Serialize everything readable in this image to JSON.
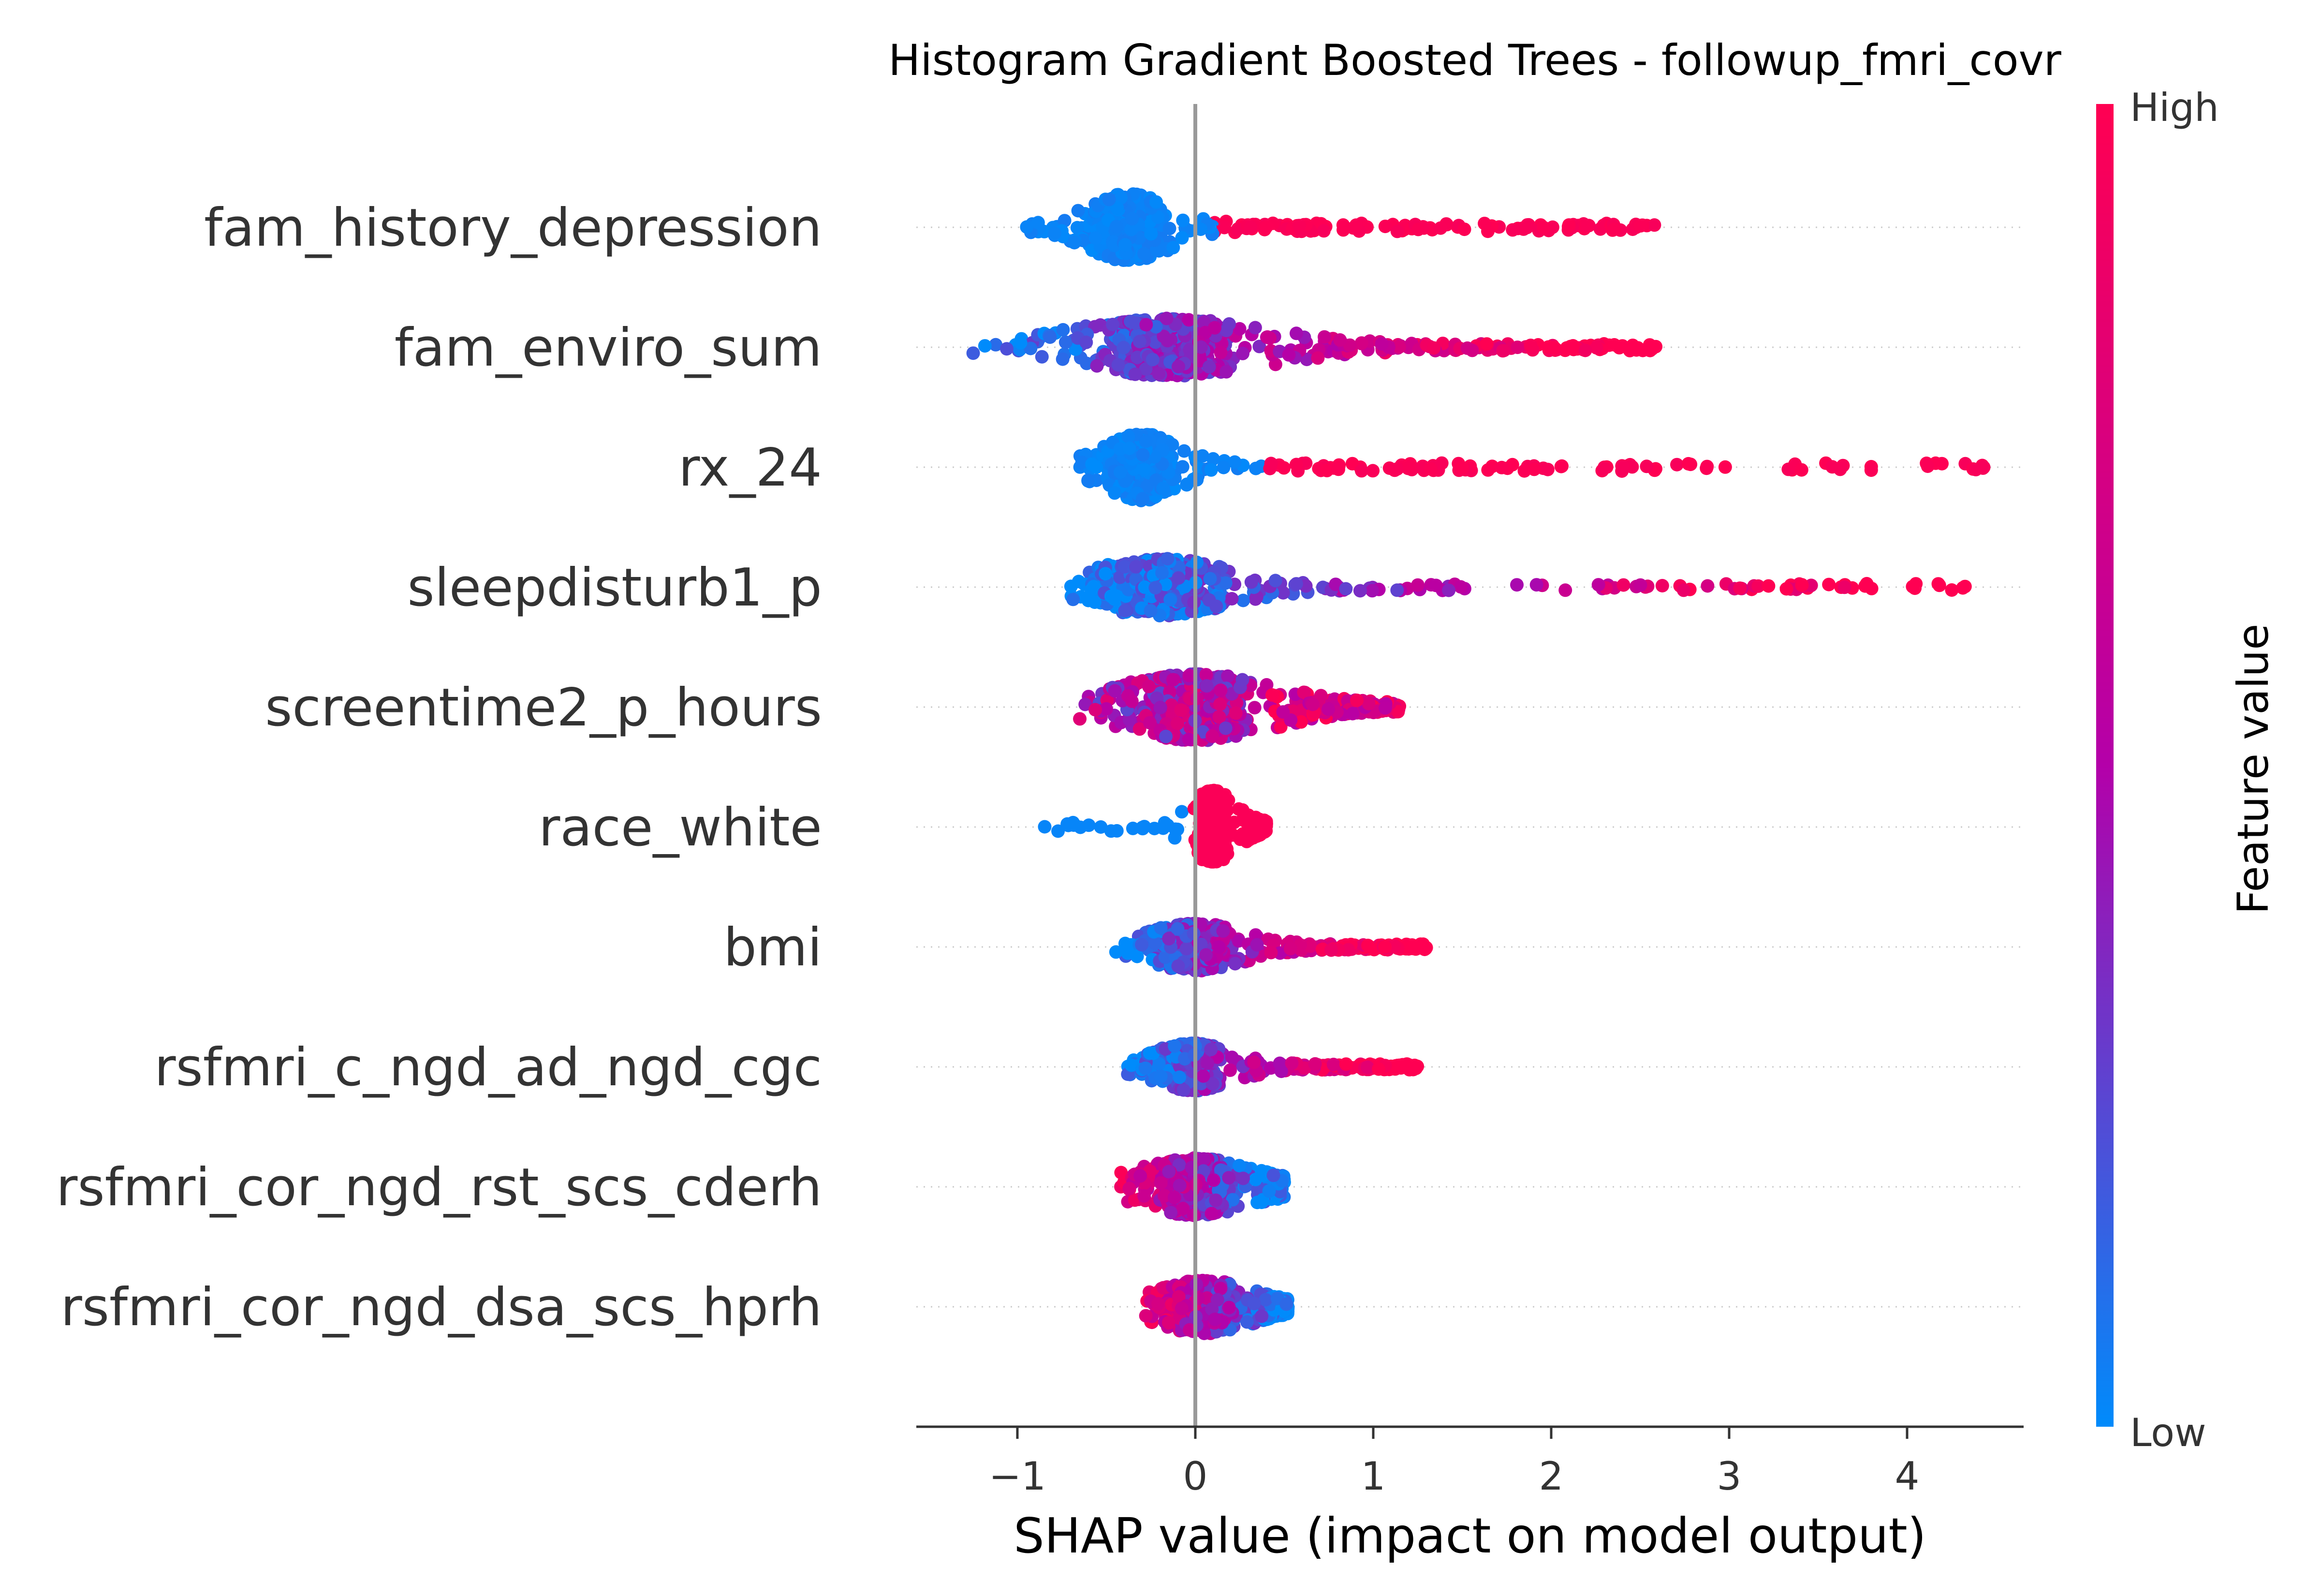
{
  "chart_data": {
    "type": "scatter",
    "title": "Histogram Gradient Boosted Trees - followup_fmri_covr",
    "xlabel": "SHAP value (impact on model output)",
    "xlim": [
      -1.55,
      4.7
    ],
    "xticks": [
      -1,
      0,
      1,
      2,
      3,
      4
    ],
    "xtick_labels": [
      "−1",
      "0",
      "1",
      "2",
      "3",
      "4"
    ],
    "grid": false,
    "colorbar": {
      "label": "Feature value",
      "high_label": "High",
      "low_label": "Low",
      "low_color": "#008bfb",
      "mid_color": "#b400a9",
      "high_color": "#ff0052"
    },
    "features": [
      {
        "name": "fam_history_depression",
        "min": -0.95,
        "max": 2.6,
        "core": [
          -0.55,
          -0.2
        ],
        "spread": 0.35,
        "color": "split",
        "split": 0.1,
        "tail": 1.1
      },
      {
        "name": "fam_enviro_sum",
        "min": -1.25,
        "max": 2.6,
        "core": [
          -0.6,
          0.3
        ],
        "spread": 0.3,
        "color": "gradient",
        "tail": 0.9
      },
      {
        "name": "rx_24",
        "min": -0.65,
        "max": 4.45,
        "core": [
          -0.45,
          -0.15
        ],
        "spread": 0.35,
        "color": "split",
        "split": 0.4,
        "tail": 1.6
      },
      {
        "name": "sleepdisturb1_p",
        "min": -0.7,
        "max": 4.35,
        "core": [
          -0.5,
          0.1
        ],
        "spread": 0.3,
        "color": "gradient",
        "tail": 1.4
      },
      {
        "name": "screentime2_p_hours",
        "min": -0.65,
        "max": 1.15,
        "core": [
          -0.35,
          0.35
        ],
        "spread": 0.35,
        "color": "mixed",
        "tail": 0.6
      },
      {
        "name": "race_white",
        "min": -0.9,
        "max": 0.4,
        "core": [
          0.02,
          0.18
        ],
        "spread": 0.38,
        "color": "race",
        "tail": 0.3
      },
      {
        "name": "bmi",
        "min": -0.45,
        "max": 1.3,
        "core": [
          -0.2,
          0.2
        ],
        "spread": 0.25,
        "color": "gradient",
        "tail": 0.6
      },
      {
        "name": "rsfmri_c_ngd_ad_ngd_cgc",
        "min": -0.38,
        "max": 1.25,
        "core": [
          -0.18,
          0.15
        ],
        "spread": 0.25,
        "color": "gradient",
        "tail": 0.55
      },
      {
        "name": "rsfmri_cor_ngd_rst_scs_cderh",
        "min": -0.42,
        "max": 0.5,
        "core": [
          -0.25,
          0.25
        ],
        "spread": 0.3,
        "color": "inverse",
        "tail": 0.3
      },
      {
        "name": "rsfmri_cor_ngd_dsa_scs_hprh",
        "min": -0.28,
        "max": 0.52,
        "core": [
          -0.15,
          0.25
        ],
        "spread": 0.28,
        "color": "inverse",
        "tail": 0.3
      }
    ]
  }
}
